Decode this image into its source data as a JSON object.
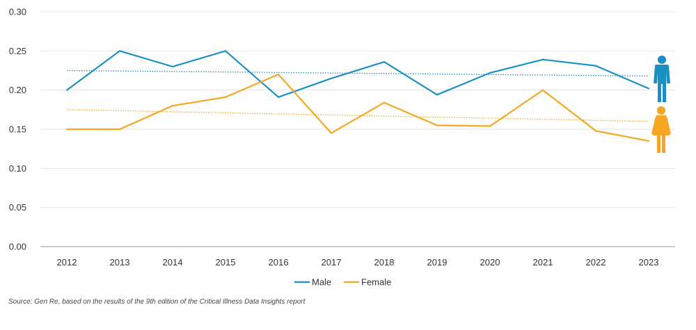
{
  "chart_data": {
    "type": "line",
    "categories": [
      "2012",
      "2013",
      "2014",
      "2015",
      "2016",
      "2017",
      "2018",
      "2019",
      "2020",
      "2021",
      "2022",
      "2023"
    ],
    "ylim": [
      0,
      0.3
    ],
    "yticks": [
      "0.00",
      "0.05",
      "0.10",
      "0.15",
      "0.20",
      "0.25",
      "0.30"
    ],
    "series": [
      {
        "name": "Male",
        "color": "#1a8fc4",
        "values": [
          0.2,
          0.25,
          0.23,
          0.25,
          0.191,
          0.215,
          0.236,
          0.194,
          0.222,
          0.239,
          0.231,
          0.202
        ],
        "trend": [
          0.225,
          0.218
        ]
      },
      {
        "name": "Female",
        "color": "#f5a623",
        "values": [
          0.15,
          0.15,
          0.18,
          0.191,
          0.22,
          0.145,
          0.184,
          0.155,
          0.154,
          0.2,
          0.148,
          0.135
        ],
        "trend": [
          0.175,
          0.16
        ]
      }
    ],
    "legend": [
      "Male",
      "Female"
    ],
    "legend_position": "bottom-center",
    "grid": true,
    "annotations": {
      "male_icon": "male-figure-icon",
      "female_icon": "female-figure-icon"
    }
  },
  "source": "Source: Gen Re, based on the results of the 9th edition of the Critical Illness Data Insights report"
}
